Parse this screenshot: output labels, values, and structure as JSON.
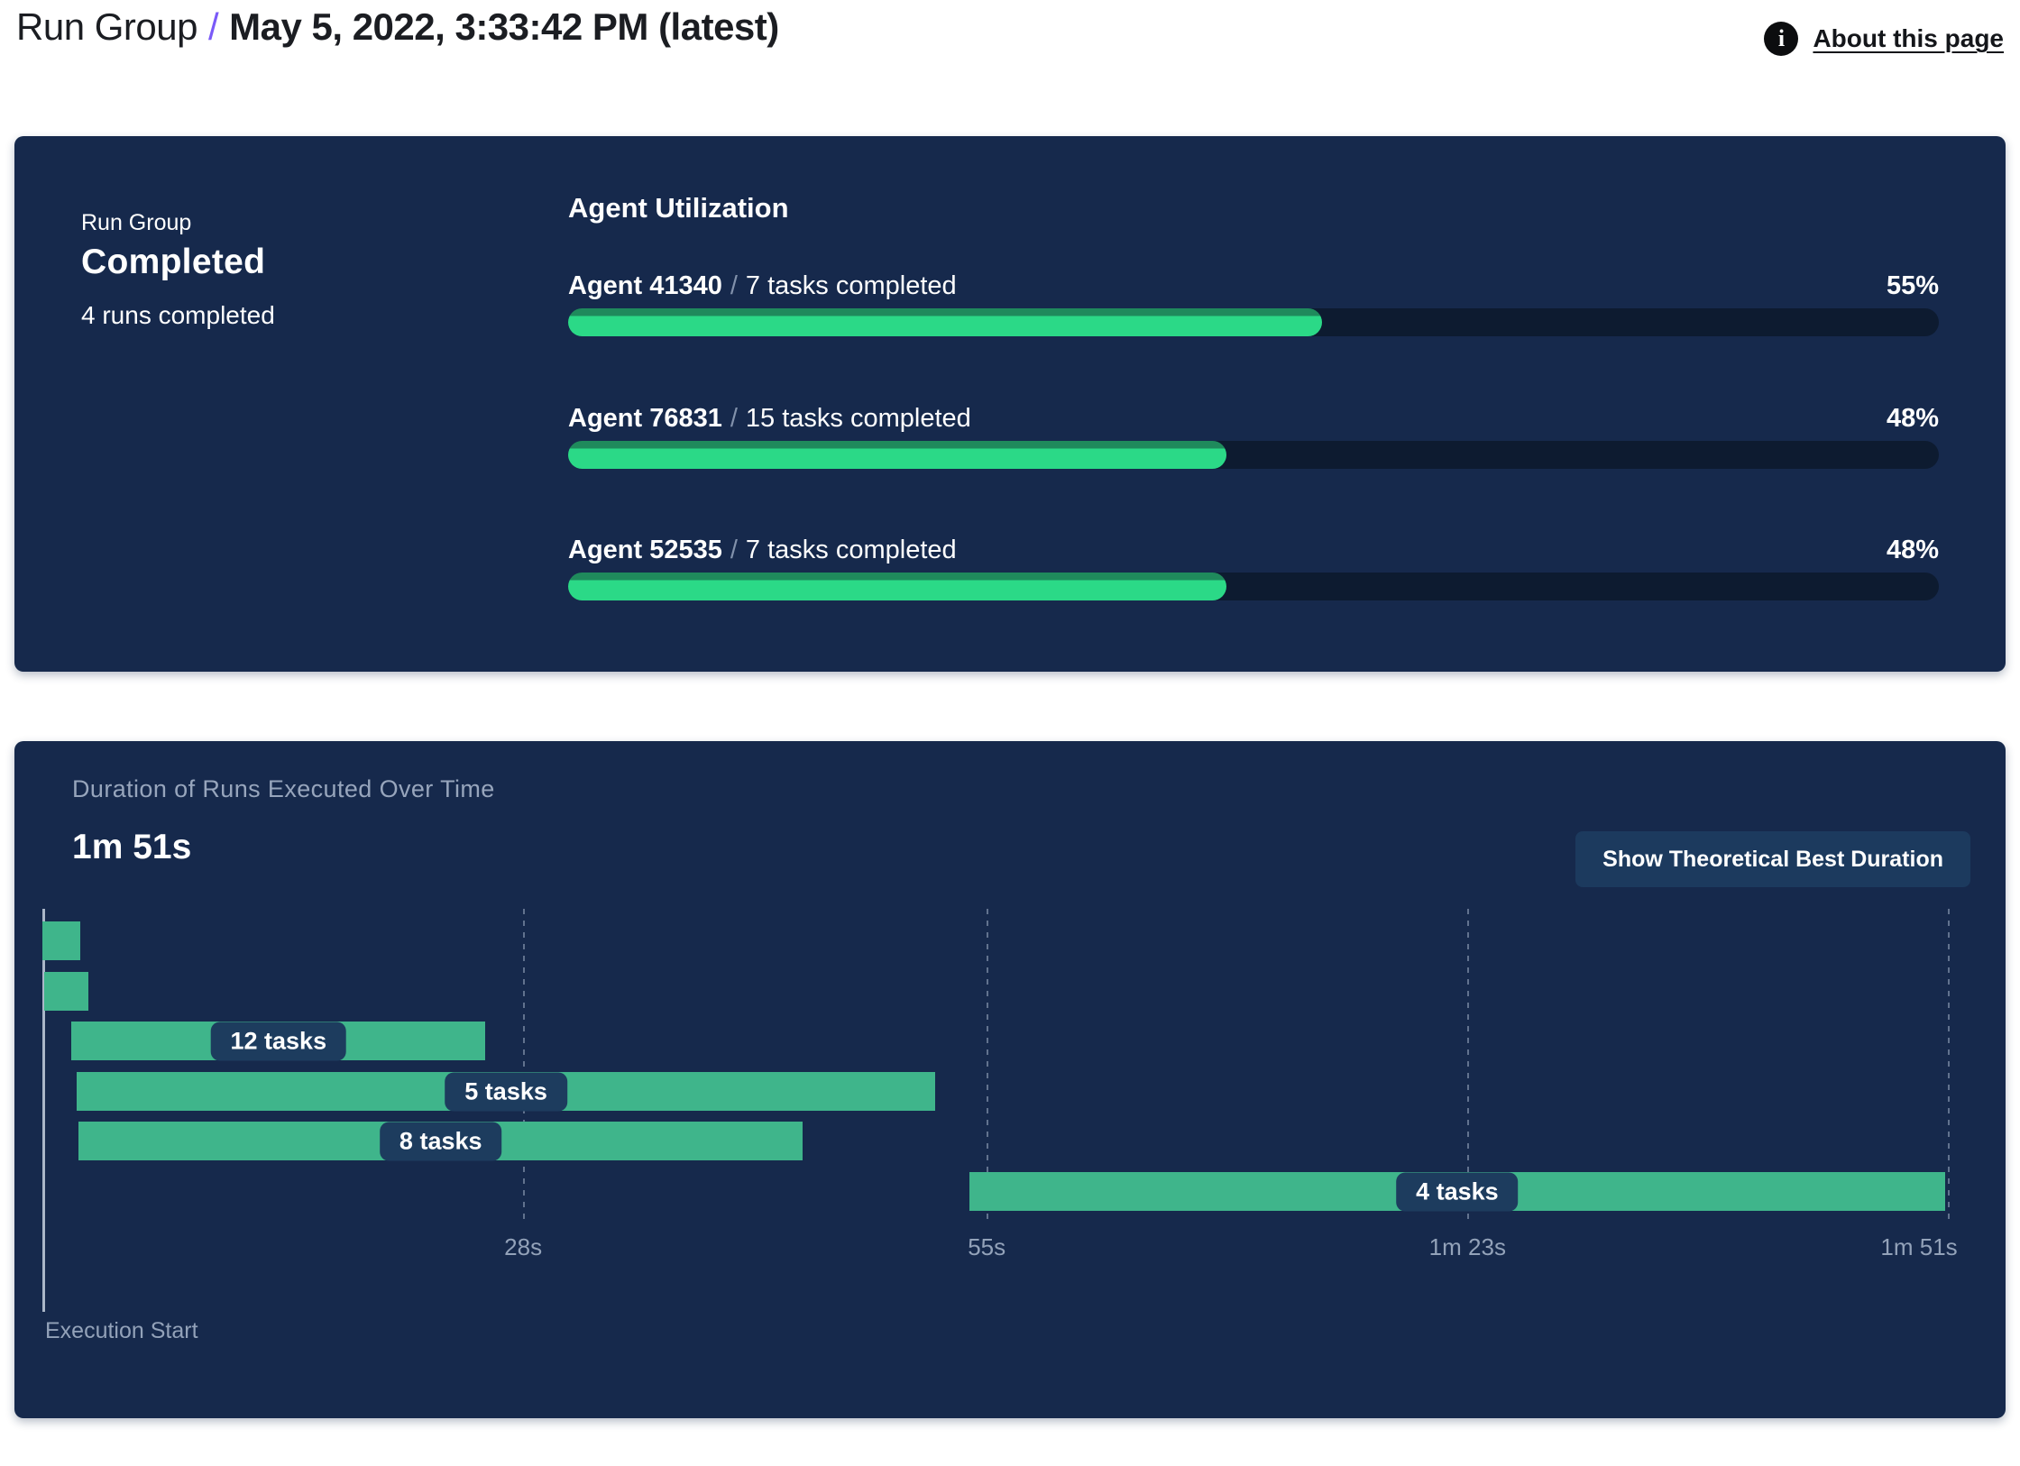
{
  "header": {
    "breadcrumb_root": "Run Group",
    "separator": "/",
    "title": "May 5, 2022, 3:33:42 PM (latest)",
    "info_icon_glyph": "i",
    "about_link": "About this page"
  },
  "summary_panel": {
    "eyebrow": "Run Group",
    "status": "Completed",
    "subtitle": "4 runs completed",
    "agent_utilization": {
      "heading": "Agent Utilization",
      "separator": "/",
      "agents": [
        {
          "name": "Agent 41340",
          "detail": "7 tasks completed",
          "percent": 55,
          "percent_label": "55%"
        },
        {
          "name": "Agent 76831",
          "detail": "15 tasks completed",
          "percent": 48,
          "percent_label": "48%"
        },
        {
          "name": "Agent 52535",
          "detail": "7 tasks completed",
          "percent": 48,
          "percent_label": "48%"
        }
      ]
    }
  },
  "duration_panel": {
    "title": "Duration of Runs Executed Over Time",
    "total_duration": "1m 51s",
    "button_label": "Show Theoretical Best Duration",
    "execution_start_label": "Execution Start"
  },
  "chart_data": {
    "type": "bar",
    "variant": "horizontal-gantt",
    "title": "Duration of Runs Executed Over Time",
    "xlabel": "Execution Start",
    "x_unit": "seconds",
    "xlim": [
      0,
      112
    ],
    "grid": "dashed-vertical",
    "total_duration_label": "1m 51s",
    "x_ticks": [
      {
        "t": 28,
        "label": "28s"
      },
      {
        "t": 55,
        "label": "55s"
      },
      {
        "t": 83,
        "label": "1m 23s"
      },
      {
        "t": 111,
        "label": "1m 51s"
      }
    ],
    "bars": [
      {
        "start": 0.0,
        "end": 2.2,
        "label": ""
      },
      {
        "start": 0.1,
        "end": 2.7,
        "label": ""
      },
      {
        "start": 1.7,
        "end": 25.8,
        "label": "12 tasks"
      },
      {
        "start": 2.0,
        "end": 52.0,
        "label": "5 tasks"
      },
      {
        "start": 2.1,
        "end": 44.3,
        "label": "8 tasks"
      },
      {
        "start": 54.0,
        "end": 110.8,
        "label": "4 tasks"
      }
    ]
  },
  "colors": {
    "page_bg": "#ffffff",
    "panel_bg": "#16294c",
    "breadcrumb_slash": "#7a5af8",
    "progress_track": "#0d1b30",
    "progress_fill": "#2bd987",
    "progress_fill_edge": "#1f8a5c",
    "gantt_bar": "#3fb58b",
    "pill_bg": "#1d3c5e",
    "button_bg": "#1c3a5e",
    "muted_text": "#97a5bc",
    "axis_line": "#aab6c8"
  }
}
